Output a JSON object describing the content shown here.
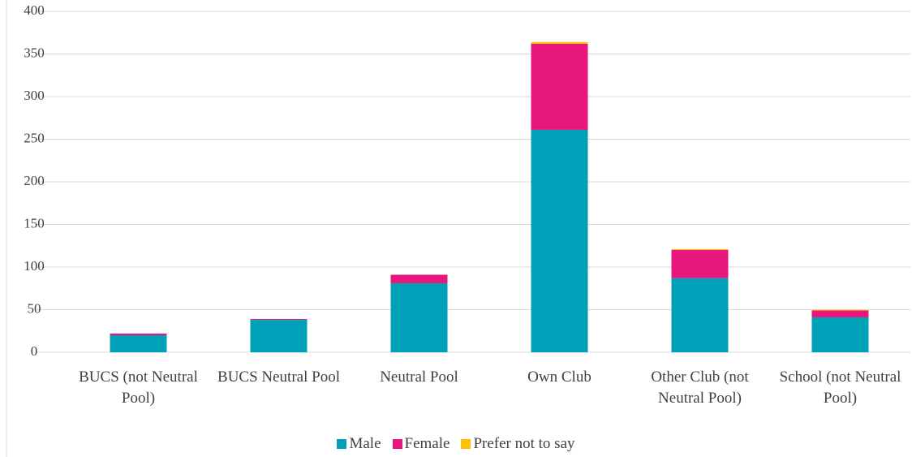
{
  "chart_data": {
    "type": "bar",
    "stacked": true,
    "categories": [
      "BUCS (not Neutral Pool)",
      "BUCS Neutral Pool",
      "Neutral Pool",
      "Own Club",
      "Other Club (not Neutral Pool)",
      "School (not Neutral Pool)"
    ],
    "series": [
      {
        "name": "Male",
        "color": "#00a0b8",
        "values": [
          20,
          38,
          81,
          261,
          87,
          41
        ]
      },
      {
        "name": "Female",
        "color": "#e8177d",
        "values": [
          2,
          1,
          10,
          101,
          33,
          8
        ]
      },
      {
        "name": "Prefer not to say",
        "color": "#ffc000",
        "values": [
          0,
          0,
          0,
          2,
          1,
          1
        ]
      }
    ],
    "ylim": [
      0,
      400
    ],
    "yticks": [
      0,
      50,
      100,
      150,
      200,
      250,
      300,
      350,
      400
    ],
    "grid": true,
    "legend": "bottom"
  }
}
